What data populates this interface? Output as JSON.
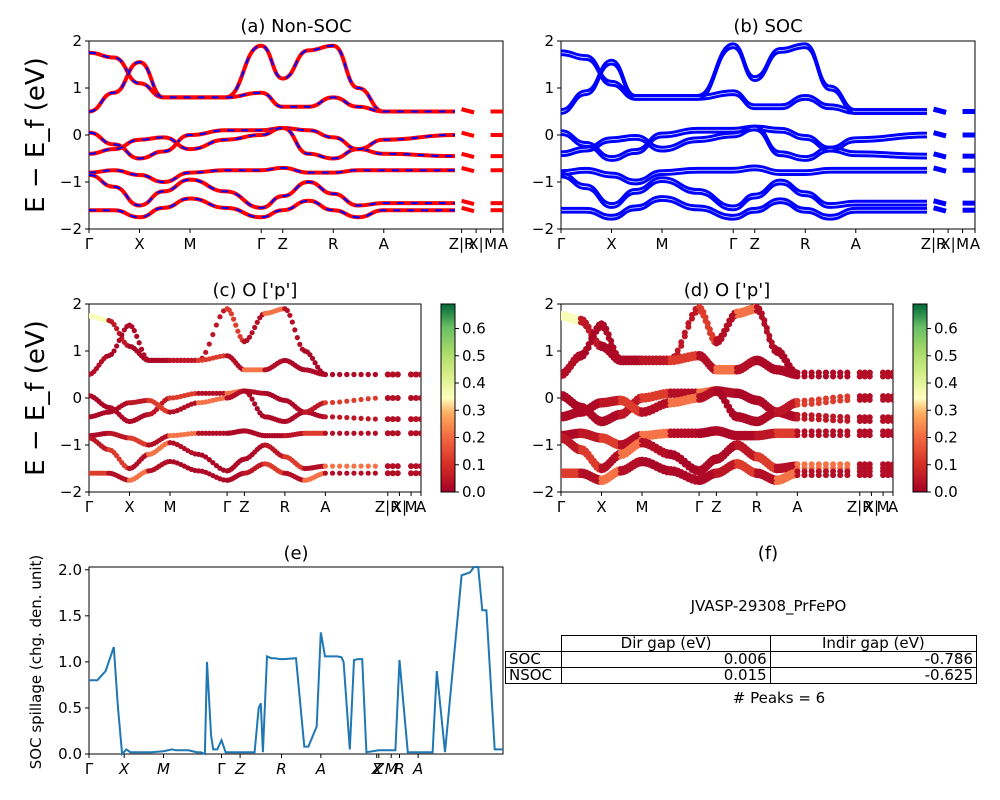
{
  "panels": {
    "a": {
      "title": "(a) Non-SOC"
    },
    "b": {
      "title": "(b) SOC"
    },
    "c": {
      "title": "(c)  O ['p']"
    },
    "d": {
      "title": "(d) O ['p']"
    },
    "e": {
      "title": "(e)"
    },
    "f": {
      "title": "(f)"
    }
  },
  "band_axes": {
    "ylabel": "E − E_f (eV)",
    "ylim": [
      -2,
      2
    ],
    "yticks": [
      "−2",
      "−1",
      "0",
      "1",
      "2"
    ],
    "kpath": [
      "Γ",
      "X",
      "M",
      "Γ",
      "Z",
      "R",
      "A",
      "Z|R",
      "X|",
      "M",
      "A"
    ]
  },
  "colorbar": {
    "ticks": [
      "0.0",
      "0.1",
      "0.2",
      "0.3",
      "0.4",
      "0.5",
      "0.6"
    ],
    "colors": [
      "#a50026",
      "#f46d43",
      "#fee08b",
      "#ffffbf",
      "#d9ef8b",
      "#66bd63",
      "#006837"
    ]
  },
  "spillage_axes": {
    "ylabel": "SOC spillage (chg. den. unit)",
    "yticks": [
      "0.0",
      "0.5",
      "1.0",
      "1.5",
      "2.0"
    ],
    "xticks": [
      "Γ",
      "X",
      "M",
      "Γ",
      "Z",
      "R",
      "A",
      "Z",
      "X",
      "R",
      "M",
      "A"
    ]
  },
  "info": {
    "jid": "JVASP-29308_PrFePO",
    "table": {
      "headers": [
        "Dir gap (eV)",
        "Indir gap (eV)"
      ],
      "rows": [
        {
          "label": "SOC",
          "dir": "0.006",
          "indir": "-0.786"
        },
        {
          "label": "NSOC",
          "dir": "0.015",
          "indir": "-0.625"
        }
      ]
    },
    "peaks": "# Peaks = 6"
  },
  "chart_data": [
    {
      "type": "line",
      "title": "(a) Non-SOC",
      "ylabel": "E − E_f (eV)",
      "ylim": [
        -2,
        2
      ],
      "colors": [
        "#ff0000",
        "#0000ff"
      ],
      "series": [
        {
          "values": [
            1.75,
            1.65,
            1.1,
            0.8,
            0.8,
            0.8,
            1.9,
            1.2,
            1.8,
            1.9,
            1.0,
            0.5,
            0.5
          ]
        },
        {
          "values": [
            0.5,
            0.9,
            1.55,
            0.8,
            0.8,
            0.8,
            0.9,
            0.6,
            0.6,
            0.8,
            0.6,
            0.5,
            0.5
          ]
        },
        {
          "values": [
            0.05,
            -0.2,
            -0.5,
            -0.35,
            0.0,
            0.1,
            0.1,
            0.15,
            0.1,
            -0.05,
            -0.3,
            -0.4,
            -0.45
          ]
        },
        {
          "values": [
            -0.4,
            -0.3,
            -0.1,
            -0.05,
            -0.3,
            -0.1,
            0.0,
            0.15,
            -0.4,
            -0.5,
            -0.3,
            -0.1,
            0.0
          ]
        },
        {
          "values": [
            -0.8,
            -0.75,
            -0.85,
            -1.0,
            -0.8,
            -0.75,
            -0.75,
            -0.7,
            -0.8,
            -0.8,
            -0.75,
            -0.75,
            -0.75
          ]
        },
        {
          "values": [
            -0.85,
            -1.1,
            -1.5,
            -1.2,
            -0.95,
            -1.2,
            -1.55,
            -1.3,
            -1.0,
            -1.25,
            -1.5,
            -1.45,
            -1.45
          ]
        },
        {
          "values": [
            -1.6,
            -1.6,
            -1.75,
            -1.55,
            -1.35,
            -1.55,
            -1.75,
            -1.6,
            -1.4,
            -1.6,
            -1.75,
            -1.6,
            -1.6
          ]
        }
      ]
    },
    {
      "type": "line",
      "title": "(b) SOC",
      "ylabel": "E − E_f (eV)",
      "ylim": [
        -2,
        2
      ],
      "colors": [
        "#0000ff"
      ],
      "series": [
        {
          "values": [
            1.75,
            1.65,
            1.1,
            0.8,
            0.8,
            0.8,
            1.9,
            1.2,
            1.8,
            1.9,
            1.0,
            0.5,
            0.5
          ]
        },
        {
          "values": [
            0.5,
            0.9,
            1.55,
            0.8,
            0.8,
            0.8,
            0.9,
            0.6,
            0.6,
            0.8,
            0.6,
            0.5,
            0.5
          ]
        },
        {
          "values": [
            0.05,
            -0.2,
            -0.5,
            -0.35,
            0.0,
            0.1,
            0.1,
            0.15,
            0.1,
            -0.05,
            -0.3,
            -0.4,
            -0.45
          ]
        },
        {
          "values": [
            -0.4,
            -0.3,
            -0.1,
            -0.05,
            -0.3,
            -0.1,
            0.0,
            0.15,
            -0.4,
            -0.5,
            -0.3,
            -0.1,
            0.0
          ]
        },
        {
          "values": [
            -0.8,
            -0.75,
            -0.85,
            -1.0,
            -0.8,
            -0.75,
            -0.75,
            -0.7,
            -0.8,
            -0.8,
            -0.75,
            -0.75,
            -0.75
          ]
        },
        {
          "values": [
            -0.85,
            -1.1,
            -1.5,
            -1.2,
            -0.95,
            -1.2,
            -1.55,
            -1.3,
            -1.0,
            -1.25,
            -1.5,
            -1.45,
            -1.45
          ]
        },
        {
          "values": [
            -1.6,
            -1.6,
            -1.75,
            -1.55,
            -1.35,
            -1.55,
            -1.75,
            -1.6,
            -1.4,
            -1.6,
            -1.75,
            -1.6,
            -1.6
          ]
        }
      ]
    },
    {
      "type": "scatter",
      "title": "(c)  O ['p']",
      "ylabel": "E − E_f (eV)",
      "ylim": [
        -2,
        2
      ],
      "colorbar_range": [
        0.0,
        0.68
      ],
      "weights": [
        0.35,
        0.05,
        0.02,
        0.03,
        0.03,
        0.08,
        0.2,
        0.05
      ]
    },
    {
      "type": "scatter",
      "title": "(d) O ['p']",
      "ylabel": "E − E_f (eV)",
      "ylim": [
        -2,
        2
      ],
      "colorbar_range": [
        0.0,
        0.68
      ],
      "weights": [
        0.35,
        0.05,
        0.02,
        0.03,
        0.03,
        0.08,
        0.2,
        0.05
      ]
    },
    {
      "type": "line",
      "title": "(e)",
      "ylabel": "SOC spillage (chg. den. unit)",
      "ylim": [
        0,
        2.03
      ],
      "color": "#1f77b4",
      "x": [
        0,
        0.02,
        0.04,
        0.06,
        0.07,
        0.08,
        0.09,
        0.1,
        0.11,
        0.12,
        0.15,
        0.18,
        0.2,
        0.21,
        0.24,
        0.26,
        0.27,
        0.28,
        0.285,
        0.295,
        0.3,
        0.31,
        0.32,
        0.33,
        0.335,
        0.4,
        0.41,
        0.415,
        0.42,
        0.43,
        0.44,
        0.45,
        0.46,
        0.47,
        0.5,
        0.52,
        0.53,
        0.55,
        0.56,
        0.57,
        0.6,
        0.61,
        0.615,
        0.63,
        0.64,
        0.65,
        0.66,
        0.67,
        0.7,
        0.7,
        0.73,
        0.74,
        0.75,
        0.77,
        0.8,
        0.8,
        0.82,
        0.83,
        0.84,
        0.86,
        0.9,
        0.92,
        0.93,
        0.94,
        0.95,
        0.96,
        0.98,
        1.0
      ],
      "y": [
        0.8,
        0.8,
        0.9,
        1.16,
        0.5,
        0.0,
        0.05,
        0.02,
        0.02,
        0.02,
        0.02,
        0.03,
        0.05,
        0.04,
        0.04,
        0.02,
        0.02,
        0.0,
        1.0,
        0.2,
        0.05,
        0.05,
        0.15,
        0.02,
        0.02,
        0.02,
        0.5,
        0.55,
        0.02,
        1.06,
        1.04,
        1.04,
        1.03,
        1.03,
        1.04,
        0.08,
        0.08,
        0.3,
        1.32,
        1.06,
        1.06,
        1.05,
        1.0,
        0.05,
        1.02,
        1.03,
        1.03,
        0.02,
        0.04,
        0.04,
        0.04,
        0.04,
        1.02,
        0.02,
        0.02,
        0.02,
        0.02,
        0.02,
        0.9,
        0.02,
        1.94,
        1.97,
        2.03,
        2.03,
        1.56,
        1.56,
        0.05,
        0.05
      ]
    }
  ]
}
